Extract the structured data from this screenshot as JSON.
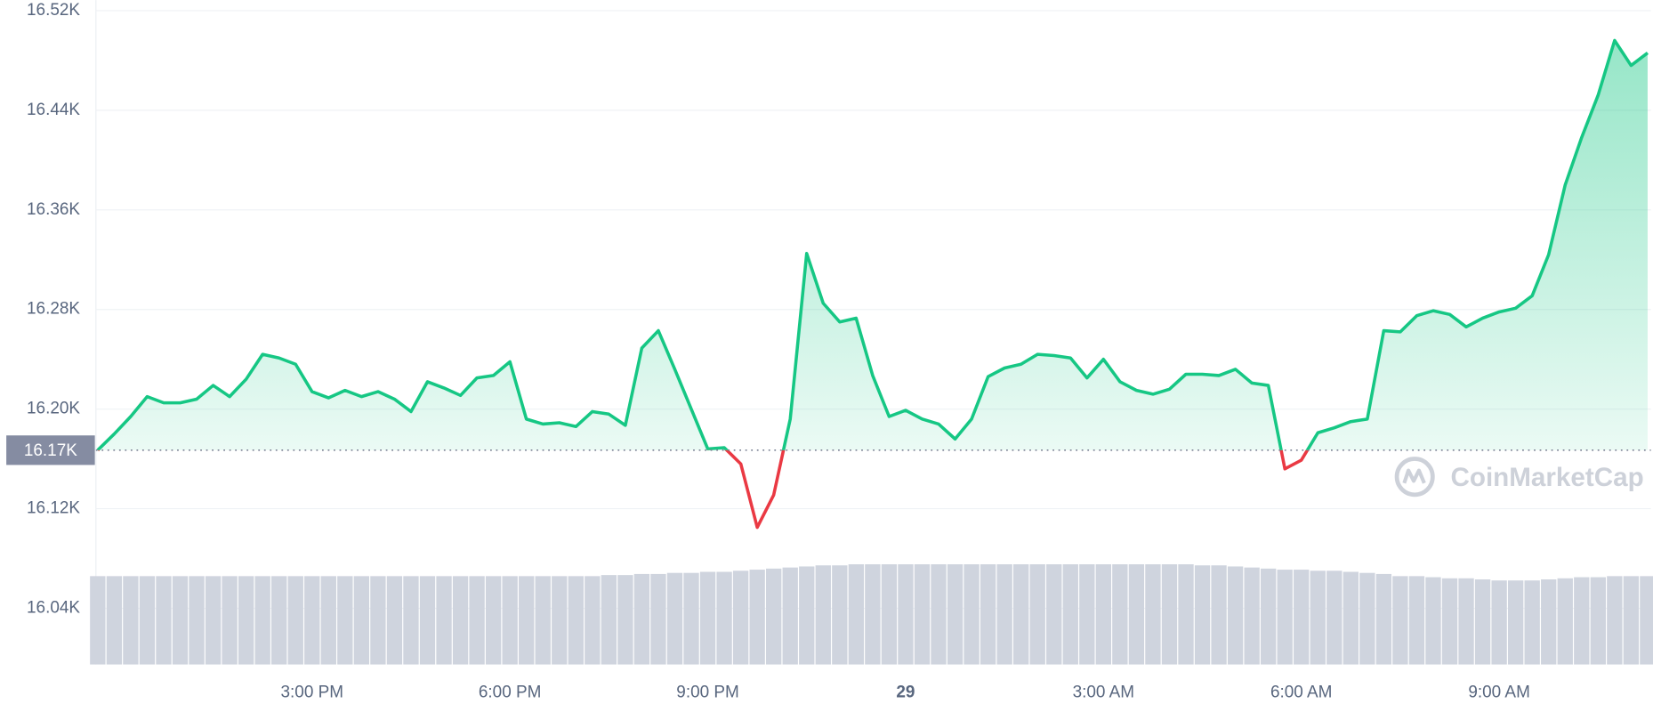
{
  "chart_data": {
    "type": "line",
    "categories": [
      null,
      null,
      null,
      null,
      null,
      null,
      null,
      null,
      null,
      null,
      null,
      null,
      null,
      "3:00 PM",
      null,
      null,
      null,
      null,
      null,
      null,
      null,
      null,
      null,
      null,
      null,
      "6:00 PM",
      null,
      null,
      null,
      null,
      null,
      null,
      null,
      null,
      null,
      null,
      null,
      "9:00 PM",
      null,
      null,
      null,
      null,
      null,
      null,
      null,
      null,
      null,
      null,
      null,
      "29",
      null,
      null,
      null,
      null,
      null,
      null,
      null,
      null,
      null,
      null,
      null,
      "3:00 AM",
      null,
      null,
      null,
      null,
      null,
      null,
      null,
      null,
      null,
      null,
      null,
      "6:00 AM",
      null,
      null,
      null,
      null,
      null,
      null,
      null,
      null,
      null,
      null,
      null,
      "9:00 AM",
      null,
      null,
      null,
      null,
      null,
      null,
      null,
      null,
      null
    ],
    "values": [
      16167,
      16180,
      16194,
      16210,
      16205,
      16205,
      16208,
      16219,
      16210,
      16224,
      16244,
      16241,
      16236,
      16214,
      16209,
      16215,
      16210,
      16214,
      16208,
      16198,
      16222,
      16217,
      16211,
      16225,
      16227,
      16238,
      16192,
      16188,
      16189,
      16186,
      16198,
      16196,
      16187,
      16249,
      16263,
      16232,
      16200,
      16168,
      16169,
      16156,
      16105,
      16131,
      16192,
      16325,
      16285,
      16270,
      16273,
      16227,
      16194,
      16199,
      16192,
      16188,
      16176,
      16192,
      16226,
      16233,
      16236,
      16244,
      16243,
      16241,
      16225,
      16240,
      16222,
      16215,
      16212,
      16216,
      16228,
      16228,
      16227,
      16232,
      16221,
      16219,
      16152,
      16159,
      16181,
      16185,
      16190,
      16192,
      16263,
      16262,
      16275,
      16279,
      16276,
      16266,
      16273,
      16278,
      16281,
      16291,
      16324,
      16380,
      16418,
      16452,
      16496,
      16476,
      16486
    ],
    "volume": [
      82,
      82,
      82,
      82,
      82,
      82,
      82,
      82,
      82,
      82,
      82,
      82,
      82,
      82,
      82,
      82,
      82,
      82,
      82,
      82,
      82,
      82,
      82,
      82,
      82,
      82,
      82,
      82,
      82,
      82,
      82,
      83,
      83,
      84,
      84,
      85,
      85,
      86,
      86,
      87,
      88,
      89,
      90,
      91,
      92,
      92,
      93,
      93,
      93,
      93,
      93,
      93,
      93,
      93,
      93,
      93,
      93,
      93,
      93,
      93,
      93,
      93,
      93,
      93,
      93,
      93,
      93,
      92,
      92,
      91,
      90,
      89,
      88,
      88,
      87,
      87,
      86,
      85,
      84,
      82,
      82,
      81,
      80,
      80,
      79,
      78,
      78,
      78,
      79,
      80,
      81,
      81,
      82,
      82,
      82
    ],
    "volume_color": "#cfd4de",
    "up_color": "#16c784",
    "down_color": "#ea3943",
    "baseline": {
      "value": 16167,
      "label": "16.17K"
    },
    "ylim": [
      16000,
      16520
    ],
    "yticks": [
      {
        "value": 16040,
        "label": "16.04K"
      },
      {
        "value": 16120,
        "label": "16.12K"
      },
      {
        "value": 16200,
        "label": "16.20K"
      },
      {
        "value": 16280,
        "label": "16.28K"
      },
      {
        "value": 16360,
        "label": "16.36K"
      },
      {
        "value": 16440,
        "label": "16.44K"
      },
      {
        "value": 16520,
        "label": "16.52K"
      }
    ],
    "grid": true,
    "watermark": "CoinMarketCap"
  }
}
